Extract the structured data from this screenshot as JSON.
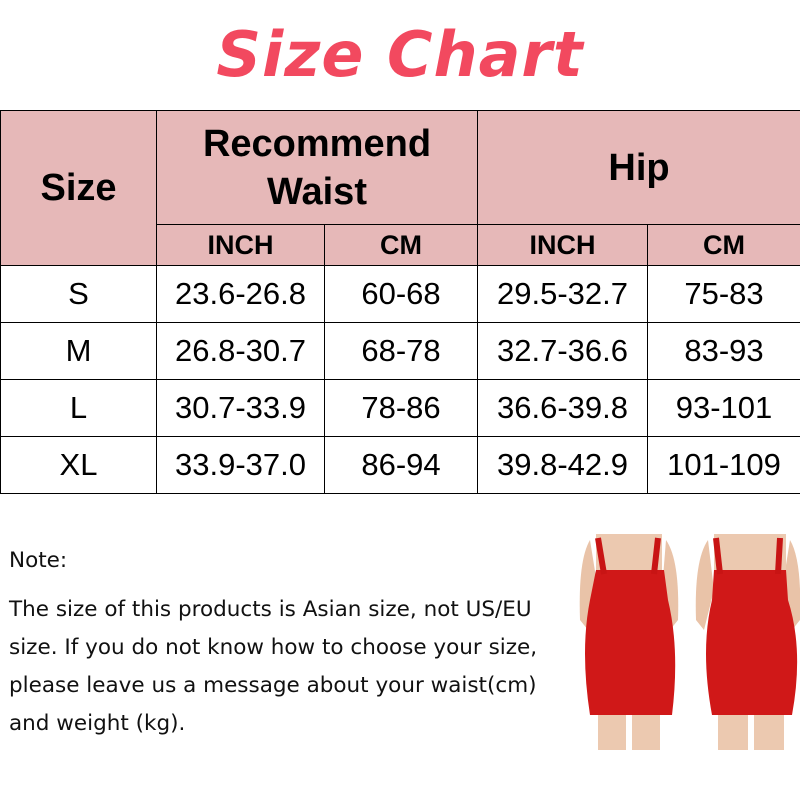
{
  "title": "Size Chart",
  "table": {
    "header": {
      "size": "Size",
      "waist": "Recommend Waist",
      "hip": "Hip"
    },
    "units": [
      "INCH",
      "CM",
      "INCH",
      "CM"
    ],
    "rows": [
      [
        "S",
        "23.6-26.8",
        "60-68",
        "29.5-32.7",
        "75-83"
      ],
      [
        "M",
        "26.8-30.7",
        "68-78",
        "32.7-36.6",
        "83-93"
      ],
      [
        "L",
        "30.7-33.9",
        "78-86",
        "36.6-39.8",
        "93-101"
      ],
      [
        "XL",
        "33.9-37.0",
        "86-94",
        "39.8-42.9",
        "101-109"
      ]
    ]
  },
  "note": {
    "heading": "Note:",
    "lines": [
      "The size of this products is Asian size, not US/EU",
      "size. If you do not know how to choose your size,",
      "please leave us a message about your waist(cm)",
      "and weight (kg)."
    ]
  },
  "colors": {
    "title": "#f2495f",
    "header_bg": "#e6b8b8",
    "dress": "#d01818"
  }
}
